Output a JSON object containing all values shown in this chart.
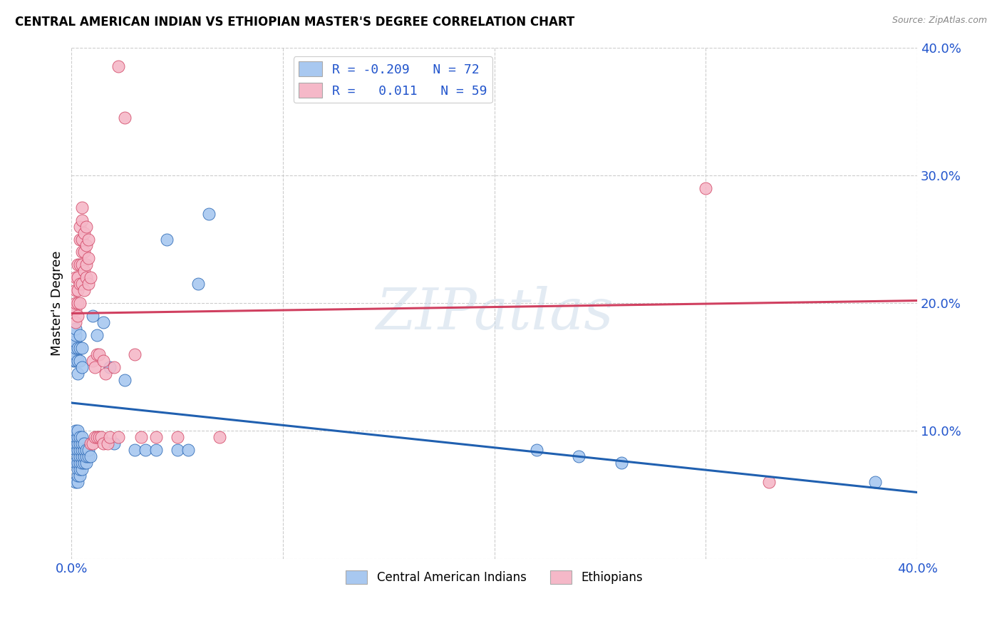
{
  "title": "CENTRAL AMERICAN INDIAN VS ETHIOPIAN MASTER'S DEGREE CORRELATION CHART",
  "source": "Source: ZipAtlas.com",
  "ylabel": "Master's Degree",
  "watermark": "ZIPatlas",
  "color_blue": "#A8C8F0",
  "color_pink": "#F5B8C8",
  "line_blue": "#2060B0",
  "line_pink": "#D04060",
  "color_label_blue": "#2255CC",
  "xlim": [
    0.0,
    0.4
  ],
  "ylim": [
    0.0,
    0.4
  ],
  "blue_points": [
    [
      0.001,
      0.155
    ],
    [
      0.001,
      0.16
    ],
    [
      0.001,
      0.165
    ],
    [
      0.001,
      0.17
    ],
    [
      0.002,
      0.06
    ],
    [
      0.002,
      0.075
    ],
    [
      0.002,
      0.085
    ],
    [
      0.002,
      0.09
    ],
    [
      0.002,
      0.095
    ],
    [
      0.002,
      0.1
    ],
    [
      0.002,
      0.155
    ],
    [
      0.002,
      0.16
    ],
    [
      0.002,
      0.165
    ],
    [
      0.002,
      0.17
    ],
    [
      0.002,
      0.175
    ],
    [
      0.002,
      0.18
    ],
    [
      0.003,
      0.06
    ],
    [
      0.003,
      0.065
    ],
    [
      0.003,
      0.07
    ],
    [
      0.003,
      0.075
    ],
    [
      0.003,
      0.08
    ],
    [
      0.003,
      0.085
    ],
    [
      0.003,
      0.09
    ],
    [
      0.003,
      0.095
    ],
    [
      0.003,
      0.1
    ],
    [
      0.003,
      0.145
    ],
    [
      0.003,
      0.155
    ],
    [
      0.003,
      0.165
    ],
    [
      0.004,
      0.065
    ],
    [
      0.004,
      0.07
    ],
    [
      0.004,
      0.075
    ],
    [
      0.004,
      0.08
    ],
    [
      0.004,
      0.085
    ],
    [
      0.004,
      0.09
    ],
    [
      0.004,
      0.095
    ],
    [
      0.004,
      0.155
    ],
    [
      0.004,
      0.165
    ],
    [
      0.004,
      0.175
    ],
    [
      0.005,
      0.07
    ],
    [
      0.005,
      0.075
    ],
    [
      0.005,
      0.08
    ],
    [
      0.005,
      0.085
    ],
    [
      0.005,
      0.09
    ],
    [
      0.005,
      0.095
    ],
    [
      0.005,
      0.15
    ],
    [
      0.005,
      0.165
    ],
    [
      0.006,
      0.075
    ],
    [
      0.006,
      0.08
    ],
    [
      0.006,
      0.085
    ],
    [
      0.006,
      0.09
    ],
    [
      0.007,
      0.075
    ],
    [
      0.007,
      0.08
    ],
    [
      0.007,
      0.085
    ],
    [
      0.008,
      0.08
    ],
    [
      0.008,
      0.085
    ],
    [
      0.009,
      0.08
    ],
    [
      0.01,
      0.19
    ],
    [
      0.012,
      0.175
    ],
    [
      0.015,
      0.185
    ],
    [
      0.018,
      0.15
    ],
    [
      0.02,
      0.09
    ],
    [
      0.025,
      0.14
    ],
    [
      0.03,
      0.085
    ],
    [
      0.035,
      0.085
    ],
    [
      0.04,
      0.085
    ],
    [
      0.045,
      0.25
    ],
    [
      0.05,
      0.085
    ],
    [
      0.055,
      0.085
    ],
    [
      0.06,
      0.215
    ],
    [
      0.065,
      0.27
    ],
    [
      0.22,
      0.085
    ],
    [
      0.24,
      0.08
    ],
    [
      0.26,
      0.075
    ],
    [
      0.38,
      0.06
    ]
  ],
  "pink_points": [
    [
      0.001,
      0.195
    ],
    [
      0.002,
      0.185
    ],
    [
      0.002,
      0.195
    ],
    [
      0.002,
      0.2
    ],
    [
      0.002,
      0.21
    ],
    [
      0.002,
      0.22
    ],
    [
      0.003,
      0.19
    ],
    [
      0.003,
      0.2
    ],
    [
      0.003,
      0.21
    ],
    [
      0.003,
      0.22
    ],
    [
      0.003,
      0.23
    ],
    [
      0.004,
      0.2
    ],
    [
      0.004,
      0.215
    ],
    [
      0.004,
      0.23
    ],
    [
      0.004,
      0.25
    ],
    [
      0.004,
      0.26
    ],
    [
      0.005,
      0.215
    ],
    [
      0.005,
      0.23
    ],
    [
      0.005,
      0.24
    ],
    [
      0.005,
      0.25
    ],
    [
      0.005,
      0.265
    ],
    [
      0.005,
      0.275
    ],
    [
      0.006,
      0.21
    ],
    [
      0.006,
      0.225
    ],
    [
      0.006,
      0.24
    ],
    [
      0.006,
      0.255
    ],
    [
      0.007,
      0.22
    ],
    [
      0.007,
      0.23
    ],
    [
      0.007,
      0.245
    ],
    [
      0.007,
      0.26
    ],
    [
      0.008,
      0.215
    ],
    [
      0.008,
      0.235
    ],
    [
      0.008,
      0.25
    ],
    [
      0.009,
      0.22
    ],
    [
      0.009,
      0.09
    ],
    [
      0.01,
      0.155
    ],
    [
      0.01,
      0.09
    ],
    [
      0.011,
      0.15
    ],
    [
      0.011,
      0.095
    ],
    [
      0.012,
      0.16
    ],
    [
      0.012,
      0.095
    ],
    [
      0.013,
      0.16
    ],
    [
      0.013,
      0.095
    ],
    [
      0.014,
      0.095
    ],
    [
      0.015,
      0.155
    ],
    [
      0.015,
      0.09
    ],
    [
      0.016,
      0.145
    ],
    [
      0.017,
      0.09
    ],
    [
      0.018,
      0.095
    ],
    [
      0.02,
      0.15
    ],
    [
      0.022,
      0.385
    ],
    [
      0.022,
      0.095
    ],
    [
      0.025,
      0.345
    ],
    [
      0.03,
      0.16
    ],
    [
      0.033,
      0.095
    ],
    [
      0.04,
      0.095
    ],
    [
      0.05,
      0.095
    ],
    [
      0.07,
      0.095
    ],
    [
      0.3,
      0.29
    ],
    [
      0.33,
      0.06
    ]
  ],
  "blue_trendline": [
    [
      0.0,
      0.122
    ],
    [
      0.4,
      0.052
    ]
  ],
  "pink_trendline": [
    [
      0.0,
      0.192
    ],
    [
      0.4,
      0.202
    ]
  ],
  "yticks": [
    0.0,
    0.1,
    0.2,
    0.3,
    0.4
  ],
  "ytick_labels": [
    "",
    "10.0%",
    "20.0%",
    "30.0%",
    "40.0%"
  ],
  "xticks": [
    0.0,
    0.1,
    0.2,
    0.3,
    0.4
  ],
  "xtick_labels": [
    "0.0%",
    "",
    "",
    "",
    "40.0%"
  ],
  "grid_color": "#CCCCCC",
  "bg_color": "#FFFFFF"
}
